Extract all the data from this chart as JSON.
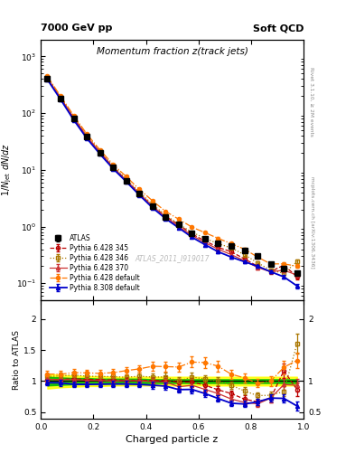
{
  "title_main": "Momentum fraction z(track jets)",
  "top_left_label": "7000 GeV pp",
  "top_right_label": "Soft QCD",
  "right_label_top": "Rivet 3.1.10, ≥ 2M events",
  "right_label_bottom": "mcplots.cern.ch [arXiv:1306.3436]",
  "watermark": "ATLAS_2011_I919017",
  "xlabel": "Charged particle z",
  "ylabel_main": "1/N_jet dN/dz",
  "ylabel_ratio": "Ratio to ATLAS",
  "xlim": [
    0,
    1.0
  ],
  "ylim_main": [
    0.05,
    2000
  ],
  "ylim_ratio": [
    0.39,
    2.3
  ],
  "atlas_color": "#000000",
  "p345_color": "#bb0000",
  "p346_color": "#aa7700",
  "p370_color": "#cc3333",
  "pdef_color": "#ff7700",
  "p8def_color": "#0000cc",
  "band_yellow": "#ffff00",
  "band_green": "#00bb00",
  "z_atlas": [
    0.025,
    0.075,
    0.125,
    0.175,
    0.225,
    0.275,
    0.325,
    0.375,
    0.425,
    0.475,
    0.525,
    0.575,
    0.625,
    0.675,
    0.725,
    0.775,
    0.825,
    0.875,
    0.925,
    0.975
  ],
  "y_atlas": [
    400,
    180,
    80,
    38,
    20,
    11,
    6.5,
    3.8,
    2.3,
    1.5,
    1.1,
    0.75,
    0.6,
    0.5,
    0.45,
    0.38,
    0.3,
    0.22,
    0.18,
    0.15
  ],
  "ye_atlas": [
    15,
    7,
    3,
    1.5,
    0.8,
    0.5,
    0.25,
    0.15,
    0.1,
    0.07,
    0.05,
    0.04,
    0.03,
    0.025,
    0.02,
    0.02,
    0.015,
    0.012,
    0.01,
    0.01
  ],
  "z_p345": [
    0.025,
    0.075,
    0.125,
    0.175,
    0.225,
    0.275,
    0.325,
    0.375,
    0.425,
    0.475,
    0.525,
    0.575,
    0.625,
    0.675,
    0.725,
    0.775,
    0.825,
    0.875,
    0.925,
    0.975
  ],
  "y_p345": [
    410,
    185,
    83,
    39,
    20.5,
    11.2,
    6.6,
    3.85,
    2.32,
    1.52,
    1.08,
    0.74,
    0.56,
    0.43,
    0.36,
    0.27,
    0.2,
    0.16,
    0.21,
    0.13
  ],
  "ye_p345": [
    12,
    6,
    2.5,
    1.2,
    0.6,
    0.4,
    0.2,
    0.12,
    0.09,
    0.06,
    0.04,
    0.03,
    0.025,
    0.022,
    0.018,
    0.016,
    0.013,
    0.012,
    0.018,
    0.013
  ],
  "z_p346": [
    0.025,
    0.075,
    0.125,
    0.175,
    0.225,
    0.275,
    0.325,
    0.375,
    0.425,
    0.475,
    0.525,
    0.575,
    0.625,
    0.675,
    0.725,
    0.775,
    0.825,
    0.875,
    0.925,
    0.975
  ],
  "y_p346": [
    430,
    195,
    88,
    41,
    21.5,
    11.8,
    6.9,
    4.1,
    2.45,
    1.6,
    1.1,
    0.8,
    0.62,
    0.5,
    0.42,
    0.32,
    0.23,
    0.17,
    0.15,
    0.24
  ],
  "ye_p346": [
    13,
    6,
    2.5,
    1.2,
    0.65,
    0.4,
    0.22,
    0.13,
    0.09,
    0.065,
    0.045,
    0.032,
    0.026,
    0.022,
    0.018,
    0.015,
    0.012,
    0.011,
    0.012,
    0.018
  ],
  "z_p370": [
    0.025,
    0.075,
    0.125,
    0.175,
    0.225,
    0.275,
    0.325,
    0.375,
    0.425,
    0.475,
    0.525,
    0.575,
    0.625,
    0.675,
    0.725,
    0.775,
    0.825,
    0.875,
    0.925,
    0.975
  ],
  "y_p370": [
    412,
    184,
    82,
    38.5,
    20.2,
    11.0,
    6.55,
    3.82,
    2.28,
    1.48,
    1.0,
    0.7,
    0.52,
    0.4,
    0.32,
    0.25,
    0.19,
    0.16,
    0.17,
    0.14
  ],
  "ye_p370": [
    12,
    6,
    2.5,
    1.2,
    0.6,
    0.38,
    0.2,
    0.12,
    0.09,
    0.06,
    0.04,
    0.03,
    0.024,
    0.02,
    0.016,
    0.014,
    0.012,
    0.011,
    0.013,
    0.012
  ],
  "z_pdef": [
    0.025,
    0.075,
    0.125,
    0.175,
    0.225,
    0.275,
    0.325,
    0.375,
    0.425,
    0.475,
    0.525,
    0.575,
    0.625,
    0.675,
    0.725,
    0.775,
    0.825,
    0.875,
    0.925,
    0.975
  ],
  "y_pdef": [
    445,
    200,
    91,
    43,
    22.5,
    12.5,
    7.6,
    4.55,
    2.85,
    1.85,
    1.35,
    0.98,
    0.78,
    0.62,
    0.5,
    0.4,
    0.29,
    0.22,
    0.22,
    0.2
  ],
  "ye_pdef": [
    13,
    6.5,
    2.8,
    1.3,
    0.7,
    0.45,
    0.25,
    0.15,
    0.1,
    0.075,
    0.055,
    0.04,
    0.032,
    0.026,
    0.022,
    0.018,
    0.014,
    0.012,
    0.015,
    0.014
  ],
  "z_p8def": [
    0.025,
    0.075,
    0.125,
    0.175,
    0.225,
    0.275,
    0.325,
    0.375,
    0.425,
    0.475,
    0.525,
    0.575,
    0.625,
    0.675,
    0.725,
    0.775,
    0.825,
    0.875,
    0.925,
    0.975
  ],
  "y_p8def": [
    390,
    175,
    76,
    36,
    19,
    10.5,
    6.2,
    3.6,
    2.15,
    1.38,
    0.95,
    0.65,
    0.48,
    0.36,
    0.29,
    0.24,
    0.2,
    0.16,
    0.13,
    0.09
  ],
  "ye_p8def": [
    12,
    5.5,
    2.3,
    1.1,
    0.55,
    0.36,
    0.19,
    0.11,
    0.08,
    0.056,
    0.038,
    0.028,
    0.022,
    0.018,
    0.015,
    0.013,
    0.011,
    0.01,
    0.009,
    0.008
  ],
  "band_y_lo": [
    0.88,
    0.9,
    0.91,
    0.92,
    0.92,
    0.93,
    0.93,
    0.93,
    0.93,
    0.93,
    0.93,
    0.93,
    0.93,
    0.93,
    0.93,
    0.93,
    0.93,
    0.93,
    0.93,
    0.93
  ],
  "band_y_hi": [
    1.12,
    1.1,
    1.09,
    1.08,
    1.08,
    1.07,
    1.07,
    1.07,
    1.07,
    1.07,
    1.07,
    1.07,
    1.07,
    1.07,
    1.07,
    1.07,
    1.07,
    1.07,
    1.07,
    1.07
  ],
  "band_g_lo": [
    0.93,
    0.94,
    0.95,
    0.95,
    0.96,
    0.96,
    0.96,
    0.96,
    0.97,
    0.97,
    0.97,
    0.97,
    0.97,
    0.97,
    0.97,
    0.97,
    0.97,
    0.97,
    0.97,
    0.97
  ],
  "band_g_hi": [
    1.07,
    1.06,
    1.05,
    1.05,
    1.04,
    1.04,
    1.04,
    1.04,
    1.03,
    1.03,
    1.03,
    1.03,
    1.03,
    1.03,
    1.03,
    1.03,
    1.03,
    1.03,
    1.03,
    1.03
  ]
}
